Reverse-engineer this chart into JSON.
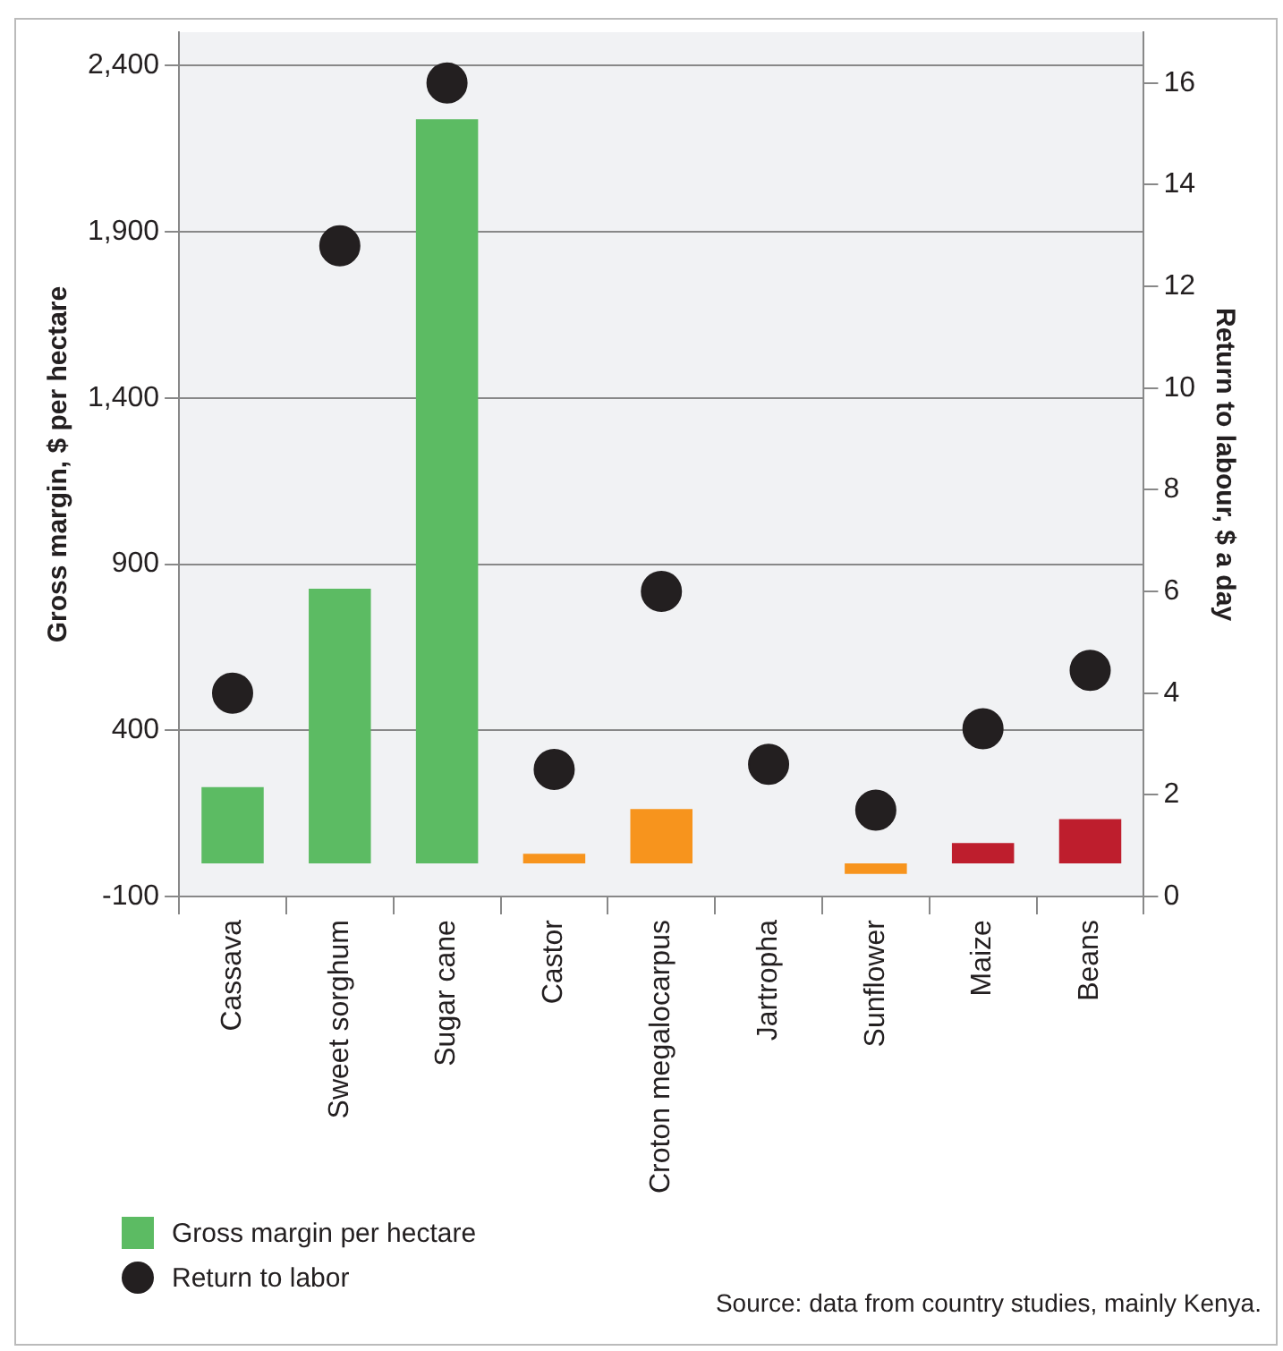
{
  "chart_data": {
    "type": "bar",
    "ylabel": "Gross margin, $ per hectare",
    "y2label": "Return to labour, $ a day",
    "categories": [
      "Cassava",
      "Sweet sorghum",
      "Sugar cane",
      "Castor",
      "Croton megalocarpus",
      "Jartropha",
      "Sunflower",
      "Maize",
      "Beans"
    ],
    "series": [
      {
        "name": "Gross margin per hectare",
        "color": "#5cbb63",
        "colors": [
          "#5cbb63",
          "#5cbb63",
          "#5cbb63",
          "#f7941d",
          "#f7941d",
          "#f7941d",
          "#f7941d",
          "#be1e2d",
          "#be1e2d"
        ],
        "values": [
          229,
          826,
          2238,
          29,
          163,
          0,
          -32,
          61,
          133
        ]
      },
      {
        "name": "Return to labor",
        "type": "scatter",
        "axis": "y2",
        "color": "#231f20",
        "values": [
          4.0,
          12.8,
          16.0,
          2.5,
          6.0,
          2.6,
          1.7,
          3.3,
          4.45
        ]
      }
    ],
    "ylim": [
      -100,
      2500
    ],
    "yticks": [
      {
        "value": -100,
        "label": "-100"
      },
      {
        "value": 400,
        "label": "400"
      },
      {
        "value": 900,
        "label": "900"
      },
      {
        "value": 1400,
        "label": "1,400"
      },
      {
        "value": 1900,
        "label": "1,900"
      },
      {
        "value": 2400,
        "label": "2,400"
      }
    ],
    "y2lim": [
      0,
      17
    ],
    "y2ticks": [
      0,
      2,
      4,
      6,
      8,
      10,
      12,
      14,
      16
    ],
    "grid": "y",
    "legend": "bottom left",
    "marker": "circle",
    "annotations": [
      "Source: data from country studies, mainly Kenya."
    ]
  }
}
